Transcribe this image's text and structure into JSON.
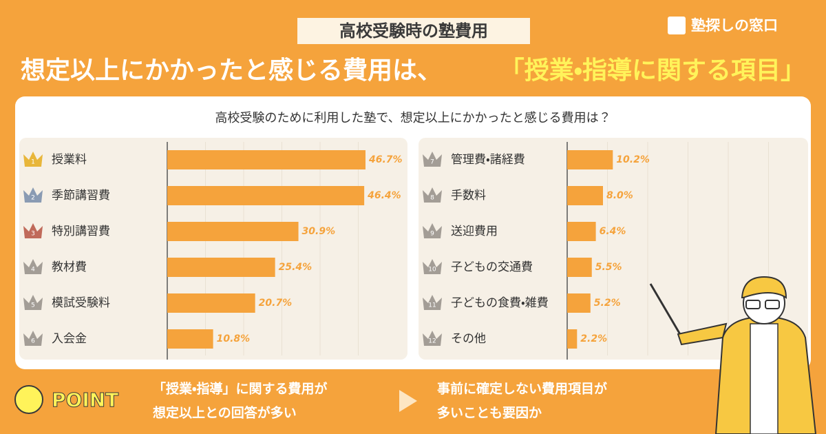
{
  "header": {
    "tag": "高校受験時の塾費用",
    "headline": "想定以上にかかったと感じる費用は、",
    "highlight": "「授業・指導に関する項目」",
    "logo": "塾探しの窓口"
  },
  "question": "高校受験のために利用した塾で、想定以上にかかったと感じる費用は？",
  "chart_data": [
    {
      "type": "bar",
      "orientation": "horizontal",
      "categories": [
        "授業料",
        "季節講習費",
        "特別講習費",
        "教材費",
        "模試受験料",
        "入会金"
      ],
      "ranks": [
        1,
        2,
        3,
        4,
        5,
        6
      ],
      "values": [
        46.7,
        46.4,
        30.9,
        25.4,
        20.7,
        10.8
      ],
      "value_labels": [
        "46.7%",
        "46.4%",
        "30.9%",
        "25.4%",
        "20.7%",
        "10.8%"
      ],
      "color": "#f5a33c",
      "xlim": [
        0,
        54
      ]
    },
    {
      "type": "bar",
      "orientation": "horizontal",
      "categories": [
        "管理費・諸経費",
        "手数料",
        "送迎費用",
        "子どもの交通費",
        "子どもの食費・雑費",
        "その他"
      ],
      "ranks": [
        7,
        8,
        9,
        10,
        11,
        12
      ],
      "values": [
        10.2,
        8.0,
        6.4,
        5.5,
        5.2,
        2.2
      ],
      "value_labels": [
        "10.2%",
        "8.0%",
        "6.4%",
        "5.5%",
        "5.2%",
        "2.2%"
      ],
      "color": "#f5a33c",
      "xlim": [
        0,
        54
      ]
    }
  ],
  "point": {
    "label": "POINT",
    "text1": [
      "「授業・指導」に関する費用が",
      "想定以上との回答が多い"
    ],
    "text2": [
      "事前に確定しない費用項目が",
      "多いことも要因か"
    ]
  }
}
